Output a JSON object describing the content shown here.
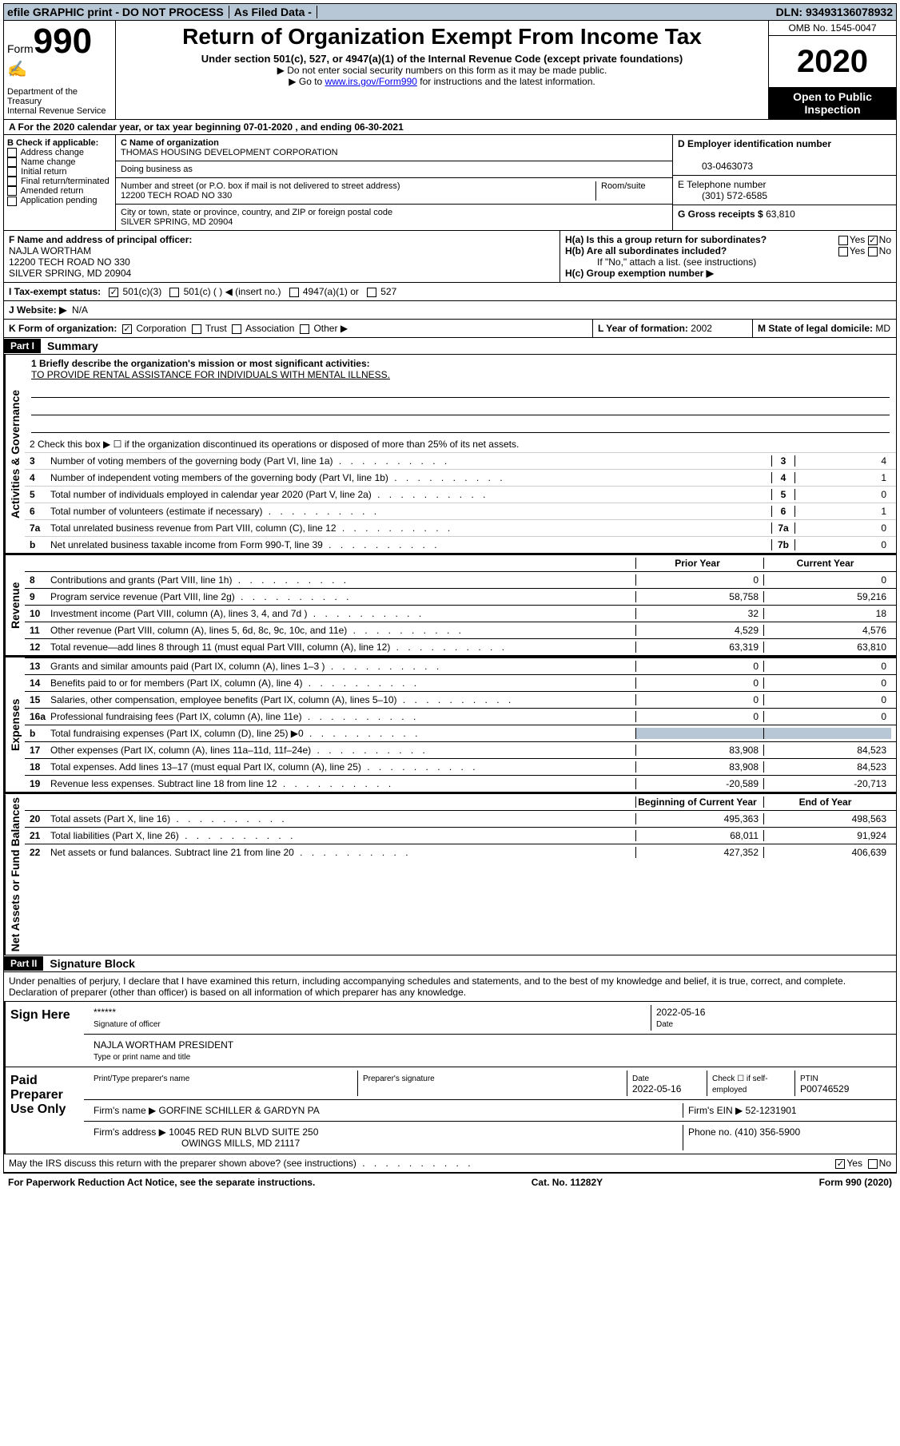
{
  "topbar": {
    "efile": "efile GRAPHIC print - DO NOT PROCESS",
    "asfiled": "As Filed Data -",
    "dln_label": "DLN:",
    "dln": "93493136078932"
  },
  "header": {
    "form_word": "Form",
    "form_num": "990",
    "dept": "Department of the Treasury",
    "irs": "Internal Revenue Service",
    "title": "Return of Organization Exempt From Income Tax",
    "sub": "Under section 501(c), 527, or 4947(a)(1) of the Internal Revenue Code (except private foundations)",
    "note1": "▶ Do not enter social security numbers on this form as it may be made public.",
    "note2_pre": "▶ Go to ",
    "note2_link": "www.irs.gov/Form990",
    "note2_post": " for instructions and the latest information.",
    "omb": "OMB No. 1545-0047",
    "year": "2020",
    "open": "Open to Public Inspection"
  },
  "section_a": "A  For the 2020 calendar year, or tax year beginning 07-01-2020   , and ending 06-30-2021",
  "b": {
    "label": "B Check if applicable:",
    "items": [
      "Address change",
      "Name change",
      "Initial return",
      "Final return/terminated",
      "Amended return",
      "Application pending"
    ]
  },
  "c": {
    "name_lbl": "C Name of organization",
    "name": "THOMAS HOUSING DEVELOPMENT CORPORATION",
    "dba_lbl": "Doing business as",
    "dba": "",
    "addr_lbl": "Number and street (or P.O. box if mail is not delivered to street address)",
    "room_lbl": "Room/suite",
    "addr": "12200 TECH ROAD NO 330",
    "city_lbl": "City or town, state or province, country, and ZIP or foreign postal code",
    "city": "SILVER SPRING, MD  20904"
  },
  "d": {
    "lbl": "D Employer identification number",
    "val": "03-0463073"
  },
  "e": {
    "lbl": "E Telephone number",
    "val": "(301) 572-6585"
  },
  "g": {
    "lbl": "G Gross receipts $",
    "val": "63,810"
  },
  "f": {
    "lbl": "F  Name and address of principal officer:",
    "name": "NAJLA WORTHAM",
    "addr1": "12200 TECH ROAD NO 330",
    "addr2": "SILVER SPRING, MD  20904"
  },
  "h": {
    "ha": "H(a)  Is this a group return for subordinates?",
    "hb": "H(b)  Are all subordinates included?",
    "hb_note": "If \"No,\" attach a list. (see instructions)",
    "hc": "H(c)  Group exemption number ▶",
    "yes": "Yes",
    "no": "No"
  },
  "i": {
    "lbl": "I  Tax-exempt status:",
    "opts": [
      "501(c)(3)",
      "501(c) (  ) ◀ (insert no.)",
      "4947(a)(1) or",
      "527"
    ]
  },
  "j": {
    "lbl": "J  Website: ▶",
    "val": "N/A"
  },
  "k": {
    "lbl": "K Form of organization:",
    "opts": [
      "Corporation",
      "Trust",
      "Association",
      "Other ▶"
    ]
  },
  "l": {
    "lbl": "L Year of formation:",
    "val": "2002"
  },
  "m": {
    "lbl": "M State of legal domicile:",
    "val": "MD"
  },
  "part1": {
    "hdr": "Part I",
    "title": "Summary"
  },
  "vtabs": {
    "ag": "Activities & Governance",
    "rev": "Revenue",
    "exp": "Expenses",
    "na": "Net Assets or Fund Balances"
  },
  "mission": {
    "lbl": "1 Briefly describe the organization's mission or most significant activities:",
    "txt": "TO PROVIDE RENTAL ASSISTANCE FOR INDIVIDUALS WITH MENTAL ILLNESS."
  },
  "line2": "2  Check this box ▶ ☐ if the organization discontinued its operations or disposed of more than 25% of its net assets.",
  "lines_ag": [
    {
      "n": "3",
      "t": "Number of voting members of the governing body (Part VI, line 1a)",
      "cn": "3",
      "v": "4"
    },
    {
      "n": "4",
      "t": "Number of independent voting members of the governing body (Part VI, line 1b)",
      "cn": "4",
      "v": "1"
    },
    {
      "n": "5",
      "t": "Total number of individuals employed in calendar year 2020 (Part V, line 2a)",
      "cn": "5",
      "v": "0"
    },
    {
      "n": "6",
      "t": "Total number of volunteers (estimate if necessary)",
      "cn": "6",
      "v": "1"
    },
    {
      "n": "7a",
      "t": "Total unrelated business revenue from Part VIII, column (C), line 12",
      "cn": "7a",
      "v": "0"
    },
    {
      "n": "b",
      "t": "Net unrelated business taxable income from Form 990-T, line 39",
      "cn": "7b",
      "v": "0"
    }
  ],
  "col_hdrs": {
    "prior": "Prior Year",
    "curr": "Current Year",
    "bocy": "Beginning of Current Year",
    "eoy": "End of Year"
  },
  "lines_rev": [
    {
      "n": "8",
      "t": "Contributions and grants (Part VIII, line 1h)",
      "p": "0",
      "c": "0"
    },
    {
      "n": "9",
      "t": "Program service revenue (Part VIII, line 2g)",
      "p": "58,758",
      "c": "59,216"
    },
    {
      "n": "10",
      "t": "Investment income (Part VIII, column (A), lines 3, 4, and 7d )",
      "p": "32",
      "c": "18"
    },
    {
      "n": "11",
      "t": "Other revenue (Part VIII, column (A), lines 5, 6d, 8c, 9c, 10c, and 11e)",
      "p": "4,529",
      "c": "4,576"
    },
    {
      "n": "12",
      "t": "Total revenue—add lines 8 through 11 (must equal Part VIII, column (A), line 12)",
      "p": "63,319",
      "c": "63,810"
    }
  ],
  "lines_exp": [
    {
      "n": "13",
      "t": "Grants and similar amounts paid (Part IX, column (A), lines 1–3 )",
      "p": "0",
      "c": "0"
    },
    {
      "n": "14",
      "t": "Benefits paid to or for members (Part IX, column (A), line 4)",
      "p": "0",
      "c": "0"
    },
    {
      "n": "15",
      "t": "Salaries, other compensation, employee benefits (Part IX, column (A), lines 5–10)",
      "p": "0",
      "c": "0"
    },
    {
      "n": "16a",
      "t": "Professional fundraising fees (Part IX, column (A), line 11e)",
      "p": "0",
      "c": "0"
    },
    {
      "n": "b",
      "t": "Total fundraising expenses (Part IX, column (D), line 25) ▶0",
      "p": "",
      "c": "",
      "shade": true
    },
    {
      "n": "17",
      "t": "Other expenses (Part IX, column (A), lines 11a–11d, 11f–24e)",
      "p": "83,908",
      "c": "84,523"
    },
    {
      "n": "18",
      "t": "Total expenses. Add lines 13–17 (must equal Part IX, column (A), line 25)",
      "p": "83,908",
      "c": "84,523"
    },
    {
      "n": "19",
      "t": "Revenue less expenses. Subtract line 18 from line 12",
      "p": "-20,589",
      "c": "-20,713"
    }
  ],
  "lines_na": [
    {
      "n": "20",
      "t": "Total assets (Part X, line 16)",
      "p": "495,363",
      "c": "498,563"
    },
    {
      "n": "21",
      "t": "Total liabilities (Part X, line 26)",
      "p": "68,011",
      "c": "91,924"
    },
    {
      "n": "22",
      "t": "Net assets or fund balances. Subtract line 21 from line 20",
      "p": "427,352",
      "c": "406,639"
    }
  ],
  "part2": {
    "hdr": "Part II",
    "title": "Signature Block"
  },
  "sig_para": "Under penalties of perjury, I declare that I have examined this return, including accompanying schedules and statements, and to the best of my knowledge and belief, it is true, correct, and complete. Declaration of preparer (other than officer) is based on all information of which preparer has any knowledge.",
  "sign_here": {
    "lbl": "Sign Here",
    "stars": "******",
    "date": "2022-05-16",
    "sig_lbl": "Signature of officer",
    "date_lbl": "Date",
    "name": "NAJLA WORTHAM PRESIDENT",
    "name_lbl": "Type or print name and title"
  },
  "preparer": {
    "lbl": "Paid Preparer Use Only",
    "h1": "Print/Type preparer's name",
    "h2": "Preparer's signature",
    "h3": "Date",
    "h3v": "2022-05-16",
    "h4": "Check ☐ if self-employed",
    "h5": "PTIN",
    "h5v": "P00746529",
    "firm_lbl": "Firm's name    ▶",
    "firm": "GORFINE SCHILLER & GARDYN PA",
    "ein_lbl": "Firm's EIN ▶",
    "ein": "52-1231901",
    "addr_lbl": "Firm's address ▶",
    "addr1": "10045 RED RUN BLVD SUITE 250",
    "addr2": "OWINGS MILLS, MD  21117",
    "phone_lbl": "Phone no.",
    "phone": "(410) 356-5900"
  },
  "may_irs": "May the IRS discuss this return with the preparer shown above? (see instructions)",
  "footer": {
    "l": "For Paperwork Reduction Act Notice, see the separate instructions.",
    "m": "Cat. No. 11282Y",
    "r": "Form 990 (2020)"
  }
}
